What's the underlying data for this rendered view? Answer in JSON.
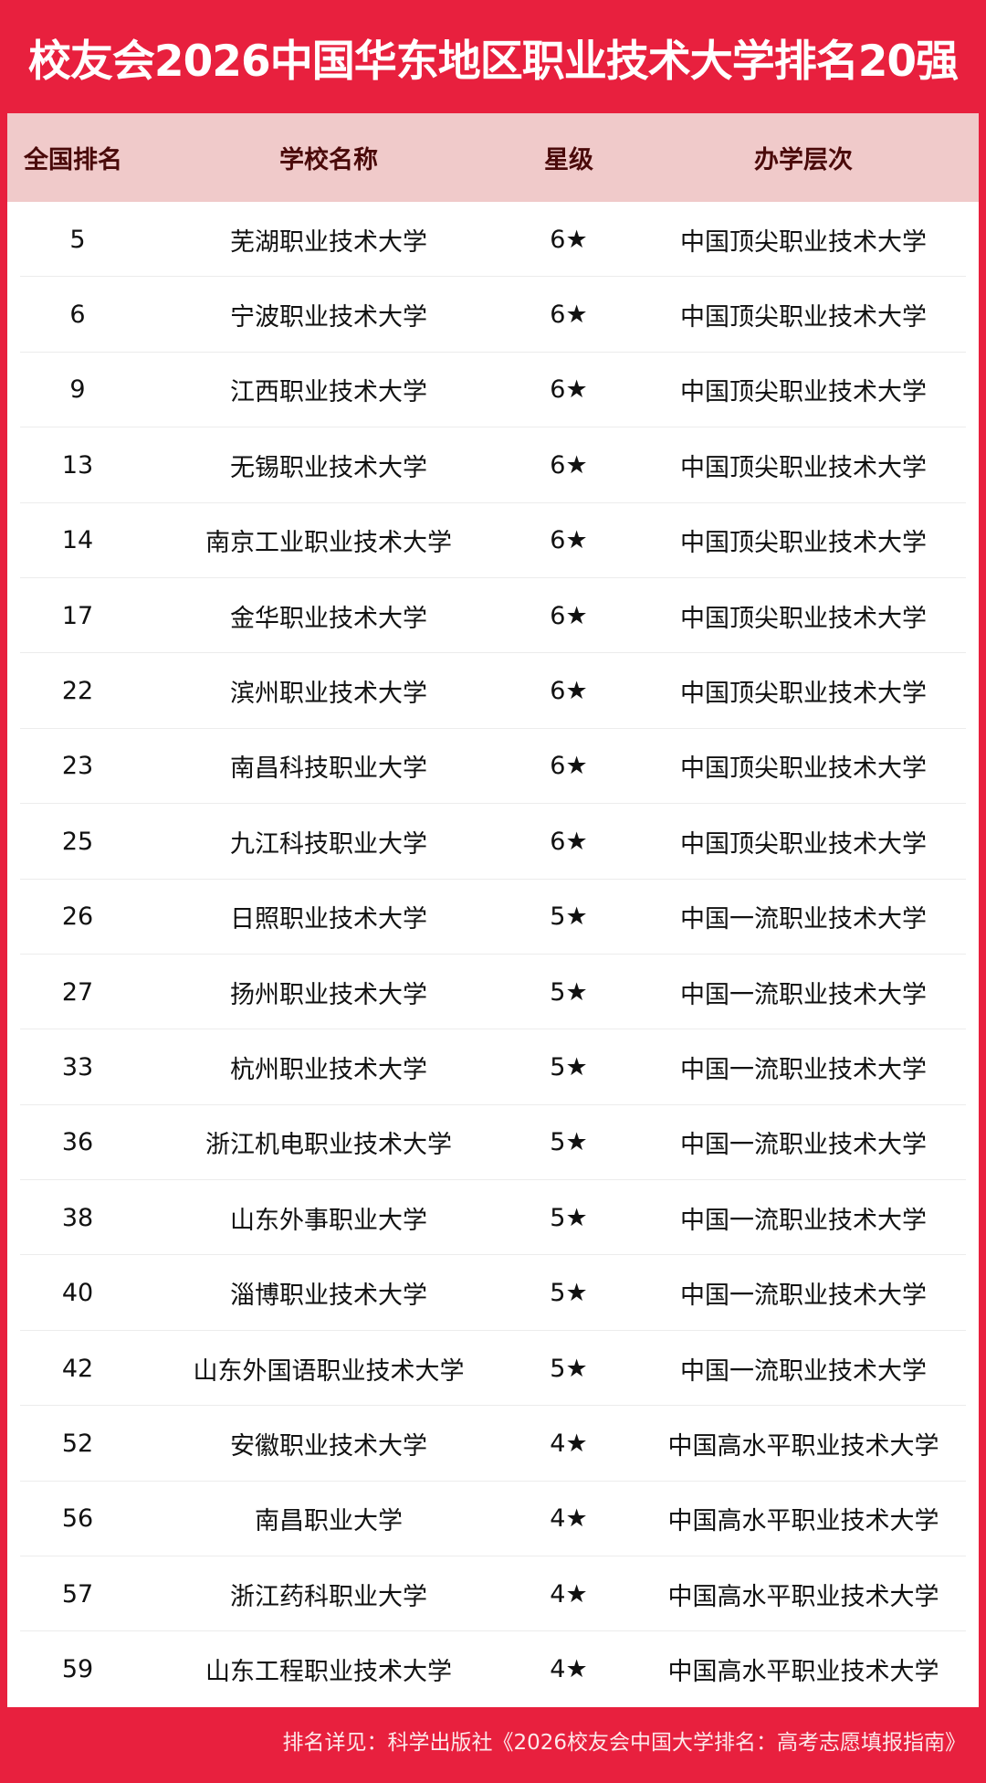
{
  "title": "校友会2026中国华东地区职业技术大学排名20强",
  "headers": [
    "全国排名",
    "学校名称",
    "星级",
    "办学层次"
  ],
  "rows": [
    [
      "5",
      "芜湖职业技术大学",
      "6★",
      "中国顶尖职业技术大学"
    ],
    [
      "6",
      "宁波职业技术大学",
      "6★",
      "中国顶尖职业技术大学"
    ],
    [
      "9",
      "江西职业技术大学",
      "6★",
      "中国顶尖职业技术大学"
    ],
    [
      "13",
      "无锡职业技术大学",
      "6★",
      "中国顶尖职业技术大学"
    ],
    [
      "14",
      "南京工业职业技术大学",
      "6★",
      "中国顶尖职业技术大学"
    ],
    [
      "17",
      "金华职业技术大学",
      "6★",
      "中国顶尖职业技术大学"
    ],
    [
      "22",
      "滨州职业技术大学",
      "6★",
      "中国顶尖职业技术大学"
    ],
    [
      "23",
      "南昌科技职业大学",
      "6★",
      "中国顶尖职业技术大学"
    ],
    [
      "25",
      "九江科技职业大学",
      "6★",
      "中国顶尖职业技术大学"
    ],
    [
      "26",
      "日照职业技术大学",
      "5★",
      "中国一流职业技术大学"
    ],
    [
      "27",
      "扬州职业技术大学",
      "5★",
      "中国一流职业技术大学"
    ],
    [
      "33",
      "杭州职业技术大学",
      "5★",
      "中国一流职业技术大学"
    ],
    [
      "36",
      "浙江机电职业技术大学",
      "5★",
      "中国一流职业技术大学"
    ],
    [
      "38",
      "山东外事职业大学",
      "5★",
      "中国一流职业技术大学"
    ],
    [
      "40",
      "淄博职业技术大学",
      "5★",
      "中国一流职业技术大学"
    ],
    [
      "42",
      "山东外国语职业技术大学",
      "5★",
      "中国一流职业技术大学"
    ],
    [
      "52",
      "安徽职业技术大学",
      "4★",
      "中国高水平职业技术大学"
    ],
    [
      "56",
      "南昌职业大学",
      "4★",
      "中国高水平职业技术大学"
    ],
    [
      "57",
      "浙江药科职业大学",
      "4★",
      "中国高水平职业技术大学"
    ],
    [
      "59",
      "山东工程职业技术大学",
      "4★",
      "中国高水平职业技术大学"
    ]
  ],
  "footer": "排名详见：科学出版社《2026校友会中国大学排名：高考志愿填报指南》",
  "colors": {
    "brand_red": "#e8203e",
    "header_pink": "#f0caca"
  }
}
